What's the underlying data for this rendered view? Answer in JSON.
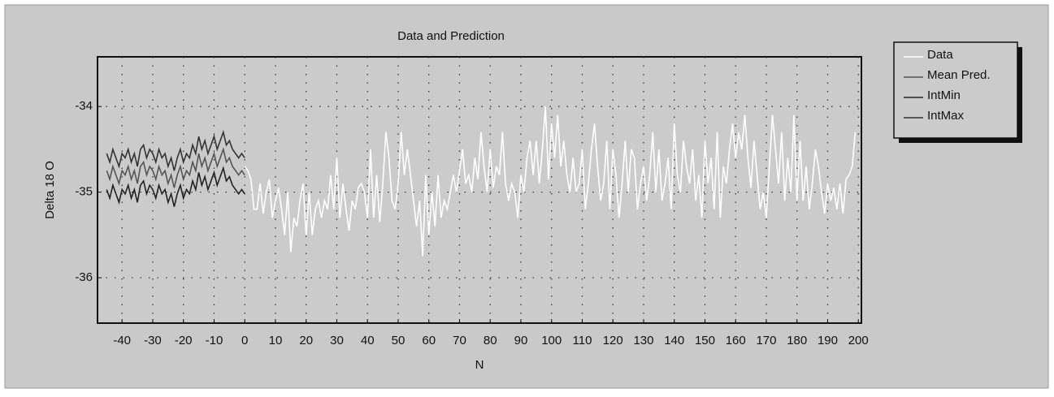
{
  "chart_data": {
    "type": "line",
    "title": "Data and Prediction",
    "x_label": "N",
    "y_label": "Delta 18 O",
    "xlim": [
      -48,
      201
    ],
    "ylim": [
      -36.53,
      -33.42
    ],
    "xticks": [
      -40,
      -30,
      -20,
      -10,
      0,
      10,
      20,
      30,
      40,
      50,
      60,
      70,
      80,
      90,
      100,
      110,
      120,
      130,
      140,
      150,
      160,
      170,
      180,
      190,
      200
    ],
    "yticks": [
      -34,
      -35,
      -36
    ],
    "grid": true,
    "legend": "right",
    "series": [
      {
        "name": "Data",
        "color": "#ffffff",
        "x": [
          0,
          1,
          2,
          3,
          4,
          5,
          6,
          7,
          8,
          9,
          10,
          11,
          12,
          13,
          14,
          15,
          16,
          17,
          18,
          19,
          20,
          21,
          22,
          23,
          24,
          25,
          26,
          27,
          28,
          29,
          30,
          31,
          32,
          33,
          34,
          35,
          36,
          37,
          38,
          39,
          40,
          41,
          42,
          43,
          44,
          45,
          46,
          47,
          48,
          49,
          50,
          51,
          52,
          53,
          54,
          55,
          56,
          57,
          58,
          59,
          60,
          61,
          62,
          63,
          64,
          65,
          66,
          67,
          68,
          69,
          70,
          71,
          72,
          73,
          74,
          75,
          76,
          77,
          78,
          79,
          80,
          81,
          82,
          83,
          84,
          85,
          86,
          87,
          88,
          89,
          90,
          91,
          92,
          93,
          94,
          95,
          96,
          97,
          98,
          99,
          100,
          101,
          102,
          103,
          104,
          105,
          106,
          107,
          108,
          109,
          110,
          111,
          112,
          113,
          114,
          115,
          116,
          117,
          118,
          119,
          120,
          121,
          122,
          123,
          124,
          125,
          126,
          127,
          128,
          129,
          130,
          131,
          132,
          133,
          134,
          135,
          136,
          137,
          138,
          139,
          140,
          141,
          142,
          143,
          144,
          145,
          146,
          147,
          148,
          149,
          150,
          151,
          152,
          153,
          154,
          155,
          156,
          157,
          158,
          159,
          160,
          161,
          162,
          163,
          164,
          165,
          166,
          167,
          168,
          169,
          170,
          171,
          172,
          173,
          174,
          175,
          176,
          177,
          178,
          179,
          180,
          181,
          182,
          183,
          184,
          185,
          186,
          187,
          188,
          189,
          190,
          191,
          192,
          193,
          194,
          195,
          196,
          197,
          198,
          199
        ],
        "values": [
          -34.7,
          -34.75,
          -34.85,
          -35.2,
          -35.2,
          -34.9,
          -35.25,
          -35.0,
          -34.85,
          -35.3,
          -35.1,
          -34.95,
          -35.2,
          -35.5,
          -35.0,
          -35.7,
          -35.3,
          -35.4,
          -35.1,
          -34.9,
          -35.5,
          -35.0,
          -35.5,
          -35.2,
          -35.1,
          -35.3,
          -35.1,
          -35.2,
          -34.8,
          -35.2,
          -34.6,
          -35.3,
          -34.9,
          -35.2,
          -35.45,
          -35.1,
          -35.2,
          -34.95,
          -34.9,
          -35.0,
          -35.3,
          -34.5,
          -35.3,
          -34.8,
          -35.35,
          -34.9,
          -34.3,
          -34.6,
          -35.1,
          -35.2,
          -34.9,
          -34.3,
          -34.8,
          -34.5,
          -34.8,
          -35.1,
          -35.4,
          -35.1,
          -35.75,
          -34.8,
          -35.5,
          -35.0,
          -35.4,
          -34.8,
          -35.3,
          -35.1,
          -35.2,
          -35.0,
          -34.8,
          -35.0,
          -34.75,
          -34.5,
          -34.9,
          -34.8,
          -35.0,
          -34.6,
          -34.85,
          -34.3,
          -34.7,
          -35.0,
          -34.5,
          -34.95,
          -34.7,
          -34.8,
          -34.3,
          -34.9,
          -35.1,
          -34.9,
          -35.0,
          -35.3,
          -34.8,
          -35.0,
          -34.6,
          -34.4,
          -34.8,
          -34.4,
          -34.9,
          -34.5,
          -34.0,
          -34.85,
          -34.2,
          -34.6,
          -34.1,
          -34.7,
          -34.4,
          -34.8,
          -35.0,
          -34.6,
          -35.0,
          -34.9,
          -34.5,
          -35.2,
          -34.9,
          -34.5,
          -34.2,
          -34.7,
          -35.1,
          -34.9,
          -34.4,
          -35.2,
          -34.5,
          -34.8,
          -35.3,
          -34.9,
          -34.4,
          -35.0,
          -34.5,
          -34.6,
          -35.2,
          -34.9,
          -34.7,
          -35.1,
          -34.8,
          -34.3,
          -35.0,
          -34.5,
          -35.1,
          -34.9,
          -34.6,
          -35.2,
          -34.2,
          -34.8,
          -35.0,
          -34.4,
          -34.7,
          -34.9,
          -34.5,
          -35.1,
          -34.8,
          -35.3,
          -34.4,
          -34.9,
          -34.6,
          -35.2,
          -34.3,
          -35.3,
          -34.7,
          -34.9,
          -34.5,
          -34.2,
          -34.6,
          -34.3,
          -34.5,
          -34.1,
          -34.6,
          -34.95,
          -34.4,
          -34.8,
          -35.2,
          -35.0,
          -35.3,
          -34.7,
          -34.1,
          -34.5,
          -34.9,
          -34.3,
          -35.1,
          -34.6,
          -35.0,
          -34.1,
          -35.1,
          -34.4,
          -35.1,
          -34.7,
          -35.2,
          -34.9,
          -34.5,
          -34.7,
          -35.0,
          -35.25,
          -34.9,
          -35.1,
          -34.95,
          -35.2,
          -34.9,
          -35.25,
          -34.85,
          -34.8,
          -34.7,
          -34.3
        ]
      },
      {
        "name": "Mean Pred.",
        "color": "#555555",
        "x": [
          -45,
          -44,
          -43,
          -42,
          -41,
          -40,
          -39,
          -38,
          -37,
          -36,
          -35,
          -34,
          -33,
          -32,
          -31,
          -30,
          -29,
          -28,
          -27,
          -26,
          -25,
          -24,
          -23,
          -22,
          -21,
          -20,
          -19,
          -18,
          -17,
          -16,
          -15,
          -14,
          -13,
          -12,
          -11,
          -10,
          -9,
          -8,
          -7,
          -6,
          -5,
          -4,
          -3,
          -2,
          -1,
          0
        ],
        "values": [
          -34.75,
          -34.85,
          -34.7,
          -34.8,
          -34.9,
          -34.75,
          -34.8,
          -34.7,
          -34.85,
          -34.75,
          -34.9,
          -34.7,
          -34.65,
          -34.8,
          -34.7,
          -34.75,
          -34.85,
          -34.7,
          -34.8,
          -34.75,
          -34.9,
          -34.8,
          -34.95,
          -34.8,
          -34.7,
          -34.85,
          -34.75,
          -34.8,
          -34.65,
          -34.75,
          -34.55,
          -34.7,
          -34.6,
          -34.75,
          -34.65,
          -34.55,
          -34.7,
          -34.6,
          -34.5,
          -34.65,
          -34.6,
          -34.7,
          -34.75,
          -34.8,
          -34.75,
          -34.8
        ]
      },
      {
        "name": "IntMin",
        "color": "#222222",
        "x": [
          -45,
          -44,
          -43,
          -42,
          -41,
          -40,
          -39,
          -38,
          -37,
          -36,
          -35,
          -34,
          -33,
          -32,
          -31,
          -30,
          -29,
          -28,
          -27,
          -26,
          -25,
          -24,
          -23,
          -22,
          -21,
          -20,
          -19,
          -18,
          -17,
          -16,
          -15,
          -14,
          -13,
          -12,
          -11,
          -10,
          -9,
          -8,
          -7,
          -6,
          -5,
          -4,
          -3,
          -2,
          -1,
          0
        ],
        "values": [
          -34.97,
          -35.07,
          -34.92,
          -35.02,
          -35.12,
          -34.97,
          -35.02,
          -34.92,
          -35.07,
          -34.97,
          -35.12,
          -34.92,
          -34.87,
          -35.02,
          -34.92,
          -34.97,
          -35.07,
          -34.92,
          -35.02,
          -34.97,
          -35.12,
          -35.02,
          -35.17,
          -35.02,
          -34.92,
          -35.07,
          -34.97,
          -35.02,
          -34.87,
          -34.97,
          -34.77,
          -34.92,
          -34.82,
          -34.97,
          -34.87,
          -34.77,
          -34.92,
          -34.82,
          -34.72,
          -34.87,
          -34.82,
          -34.92,
          -34.97,
          -35.02,
          -34.97,
          -35.02
        ]
      },
      {
        "name": "IntMax",
        "color": "#333333",
        "x": [
          -45,
          -44,
          -43,
          -42,
          -41,
          -40,
          -39,
          -38,
          -37,
          -36,
          -35,
          -34,
          -33,
          -32,
          -31,
          -30,
          -29,
          -28,
          -27,
          -26,
          -25,
          -24,
          -23,
          -22,
          -21,
          -20,
          -19,
          -18,
          -17,
          -16,
          -15,
          -14,
          -13,
          -12,
          -11,
          -10,
          -9,
          -8,
          -7,
          -6,
          -5,
          -4,
          -3,
          -2,
          -1,
          0
        ],
        "values": [
          -34.55,
          -34.65,
          -34.5,
          -34.6,
          -34.7,
          -34.55,
          -34.6,
          -34.5,
          -34.65,
          -34.55,
          -34.7,
          -34.5,
          -34.45,
          -34.6,
          -34.5,
          -34.55,
          -34.65,
          -34.5,
          -34.6,
          -34.55,
          -34.7,
          -34.6,
          -34.75,
          -34.6,
          -34.5,
          -34.65,
          -34.55,
          -34.6,
          -34.45,
          -34.55,
          -34.35,
          -34.5,
          -34.4,
          -34.55,
          -34.45,
          -34.35,
          -34.5,
          -34.4,
          -34.3,
          -34.45,
          -34.4,
          -34.5,
          -34.55,
          -34.6,
          -34.55,
          -34.6
        ]
      }
    ]
  }
}
